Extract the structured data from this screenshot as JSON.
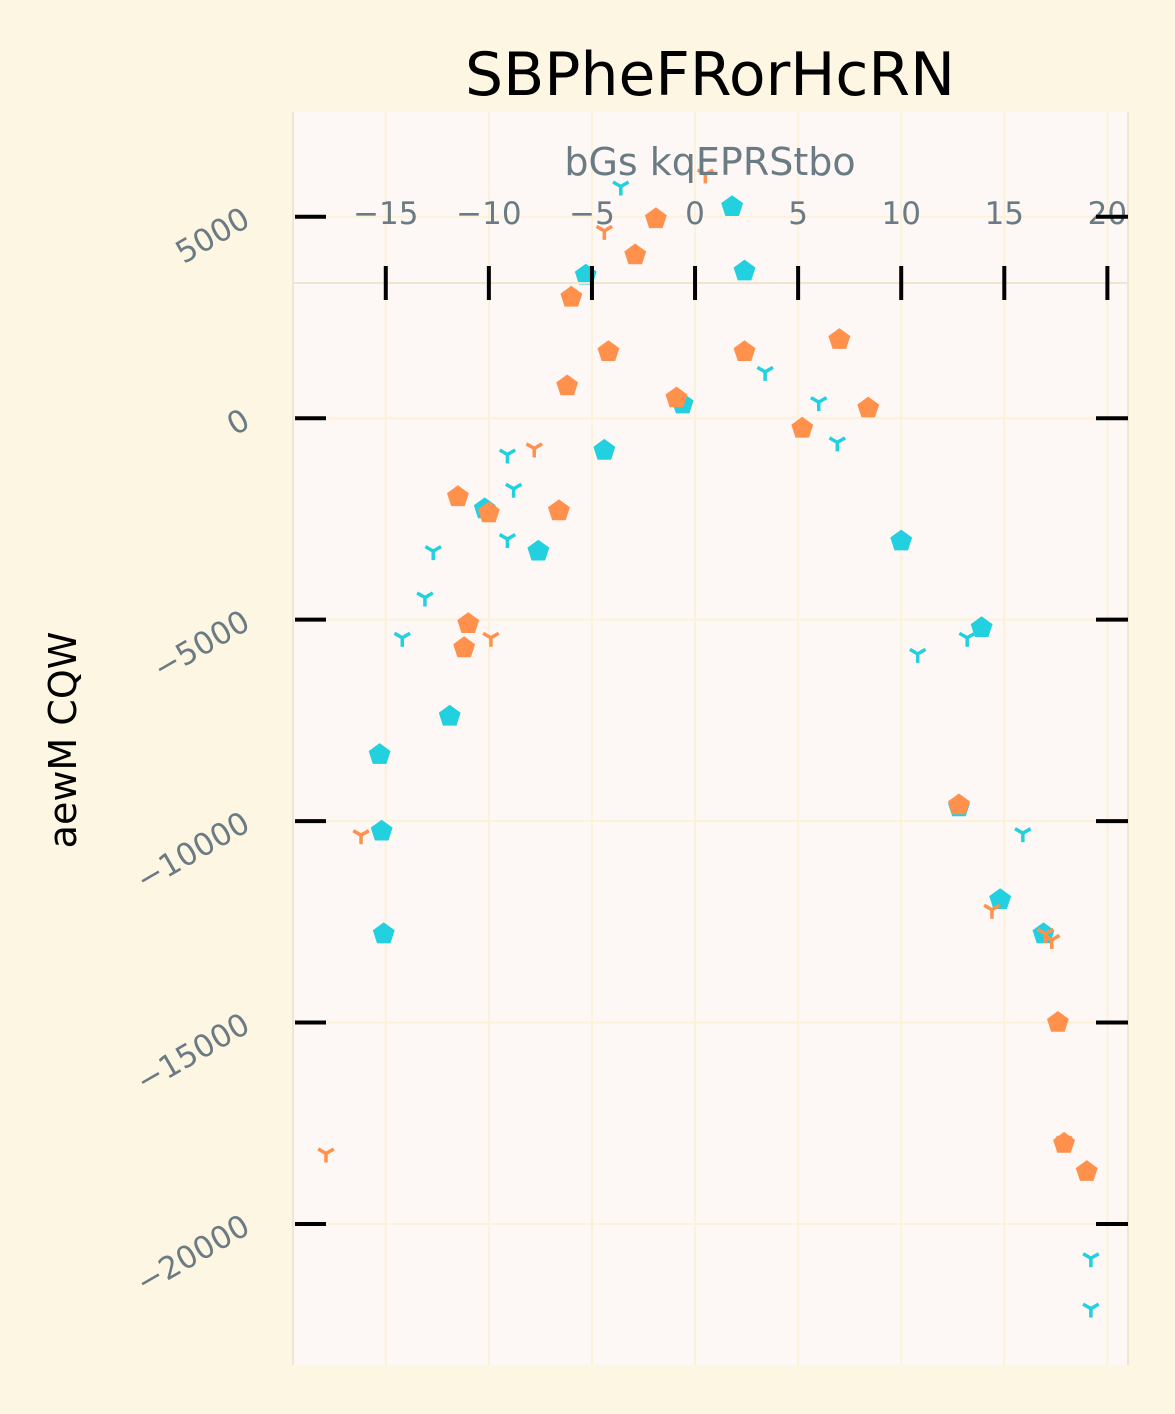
{
  "chart_data": {
    "type": "scatter",
    "title": "SBPheFRorHcRN",
    "xlabel": "bGs kqEPRStbo",
    "ylabel": "aewM CQW",
    "xlim": [
      -19.5,
      21
    ],
    "ylim": [
      -23500,
      7600
    ],
    "x_ticks": [
      -15,
      -10,
      -5,
      0,
      5,
      10,
      15,
      20
    ],
    "x_tick_labels": [
      "−15",
      "−10",
      "−5",
      "0",
      "5",
      "10",
      "15",
      "20"
    ],
    "y_ticks": [
      5000,
      0,
      -5000,
      -10000,
      -15000,
      -20000
    ],
    "y_tick_labels": [
      "5000",
      "0",
      "−5000",
      "−10000",
      "−15000",
      "−20000"
    ],
    "grid": true,
    "colors": {
      "cyan": "#22d0e0",
      "orange": "#ff914d",
      "background": "#fdf6e3",
      "plot_background": "#fdf8f5",
      "tick_label": "#6b7b84"
    },
    "series": [
      {
        "marker": "pentagon",
        "color": "#22d0e0",
        "points": [
          [
            -5.3,
            3550
          ],
          [
            1.8,
            5250
          ],
          [
            2.4,
            3650
          ],
          [
            -0.6,
            350
          ],
          [
            -4.4,
            -800
          ],
          [
            -10.2,
            -2250
          ],
          [
            -7.6,
            -3300
          ],
          [
            -11.9,
            -7400
          ],
          [
            -15.3,
            -8350
          ],
          [
            -15.2,
            -10250
          ],
          [
            -15.1,
            -12800
          ],
          [
            10.0,
            -3050
          ],
          [
            13.9,
            -5200
          ],
          [
            12.8,
            -9650
          ],
          [
            14.8,
            -11950
          ],
          [
            16.9,
            -12800
          ]
        ]
      },
      {
        "marker": "tri_down",
        "color": "#22d0e0",
        "points": [
          [
            -3.6,
            5750
          ],
          [
            3.4,
            1150
          ],
          [
            6.0,
            400
          ],
          [
            6.9,
            -600
          ],
          [
            -9.1,
            -900
          ],
          [
            -8.8,
            -1750
          ],
          [
            -9.1,
            -3000
          ],
          [
            -12.7,
            -3300
          ],
          [
            -13.1,
            -4450
          ],
          [
            -14.2,
            -5450
          ],
          [
            10.8,
            -5850
          ],
          [
            13.2,
            -5450
          ],
          [
            15.9,
            -10300
          ],
          [
            19.2,
            -20850
          ],
          [
            19.2,
            -22100
          ]
        ]
      },
      {
        "marker": "pentagon",
        "color": "#ff914d",
        "points": [
          [
            -1.9,
            4950
          ],
          [
            -2.9,
            4050
          ],
          [
            -6.0,
            3000
          ],
          [
            -4.2,
            1650
          ],
          [
            -6.2,
            800
          ],
          [
            -0.9,
            500
          ],
          [
            2.4,
            1650
          ],
          [
            7.0,
            1950
          ],
          [
            8.4,
            250
          ],
          [
            5.2,
            -250
          ],
          [
            -11.5,
            -1950
          ],
          [
            -10.0,
            -2350
          ],
          [
            -6.6,
            -2300
          ],
          [
            -11.0,
            -5100
          ],
          [
            -11.2,
            -5700
          ],
          [
            12.8,
            -9600
          ],
          [
            17.6,
            -15000
          ],
          [
            17.9,
            -18000
          ],
          [
            19.0,
            -18700
          ]
        ]
      },
      {
        "marker": "tri_down",
        "color": "#ff914d",
        "points": [
          [
            0.5,
            6050
          ],
          [
            -4.4,
            4650
          ],
          [
            -7.8,
            -750
          ],
          [
            -9.9,
            -5450
          ],
          [
            -16.2,
            -10350
          ],
          [
            -17.9,
            -18250
          ],
          [
            14.4,
            -12200
          ],
          [
            17.3,
            -12950
          ],
          [
            17.9,
            -17950
          ],
          [
            17.0,
            -12800
          ]
        ]
      }
    ]
  }
}
